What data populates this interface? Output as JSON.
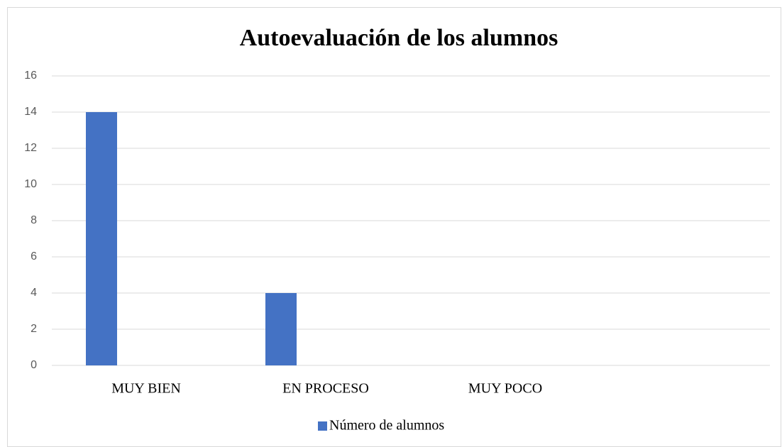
{
  "chart_data": {
    "type": "bar",
    "title": "Autoevaluación de los alumnos",
    "categories": [
      "MUY BIEN",
      "EN PROCESO",
      "MUY POCO",
      null
    ],
    "series": [
      {
        "name": "Número de alumnos",
        "color": "#4472c4",
        "values": [
          14,
          4,
          0,
          null
        ]
      }
    ],
    "ylim": [
      0,
      16
    ],
    "yticks": [
      0,
      2,
      4,
      6,
      8,
      10,
      12,
      14,
      16
    ],
    "grid": true,
    "legend": "bottom"
  }
}
